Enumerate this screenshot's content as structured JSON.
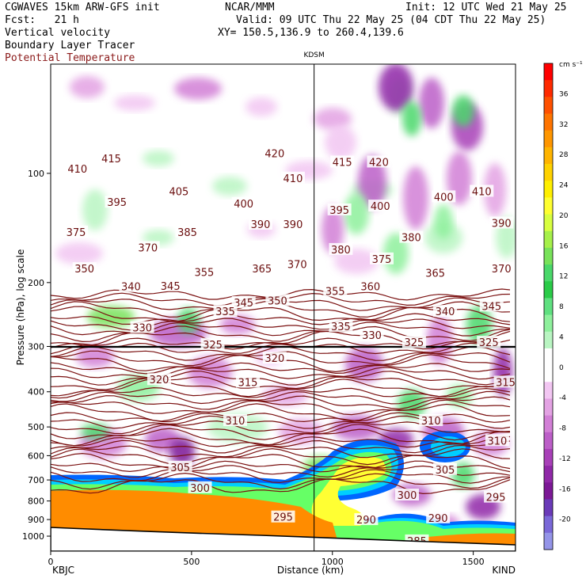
{
  "header": {
    "left_line1": "CGWAVES 15km ARW-GFS init",
    "left_line2": "Fcst:   21 h",
    "center": "NCAR/MMM",
    "init": "Init: 12 UTC Wed 21 May 25",
    "valid": "Valid: 09 UTC Thu 22 May 25 (04 CDT Thu 22 May 25)",
    "xy": "XY= 150.5,136.9 to 260.4,139.6",
    "fields": [
      "Vertical velocity",
      "Boundary Layer Tracer",
      "Potential Temperature"
    ]
  },
  "chart_data": {
    "type": "heatmap",
    "title": "",
    "xlabel": "Distance (km)",
    "ylabel": "Pressure (hPa), log scale",
    "xlim": [
      0,
      1650
    ],
    "ylim": [
      1100,
      50
    ],
    "yscale": "log",
    "x_ticks": [
      0,
      500,
      1000,
      1500
    ],
    "y_ticks": [
      100,
      200,
      300,
      400,
      500,
      600,
      700,
      800,
      900,
      1000
    ],
    "endpoint_labels": {
      "left": "KBJC",
      "right": "KIND"
    },
    "marker": {
      "label": "KDSM",
      "x": 935
    },
    "colorbar": {
      "units": "cm s⁻¹",
      "tick_labels": [
        36,
        32,
        28,
        24,
        20,
        16,
        12,
        8,
        4,
        0,
        -4,
        -8,
        -12,
        -16,
        -20
      ],
      "colors": [
        "#ff0000",
        "#ff2a00",
        "#ff5000",
        "#ff7400",
        "#ff9600",
        "#ffb400",
        "#ffd200",
        "#ffef00",
        "#ffff30",
        "#d8ff40",
        "#a6f04a",
        "#78e25a",
        "#4ad86a",
        "#2acb48",
        "#5fe080",
        "#8ef09c",
        "#b9f5c2",
        "#ffffff",
        "#ffffff",
        "#f2c6f2",
        "#e3a2e3",
        "#d27fd6",
        "#bc5ec8",
        "#a840b8",
        "#9028a8",
        "#7c1896",
        "#6a3ab8",
        "#7a68d8",
        "#9494e8"
      ]
    },
    "tracer_colors": [
      "#ff8c00",
      "#ffff33",
      "#66ff66",
      "#00cfff",
      "#0066ff"
    ],
    "theta_labels": [
      {
        "value": 420,
        "x": 795,
        "p": 88
      },
      {
        "value": 415,
        "x": 215,
        "p": 91
      },
      {
        "value": 415,
        "x": 1035,
        "p": 93
      },
      {
        "value": 420,
        "x": 1165,
        "p": 93
      },
      {
        "value": 410,
        "x": 95,
        "p": 97
      },
      {
        "value": 410,
        "x": 860,
        "p": 103
      },
      {
        "value": 405,
        "x": 455,
        "p": 112
      },
      {
        "value": 400,
        "x": 1395,
        "p": 116
      },
      {
        "value": 410,
        "x": 1530,
        "p": 112
      },
      {
        "value": 395,
        "x": 235,
        "p": 120
      },
      {
        "value": 400,
        "x": 685,
        "p": 121
      },
      {
        "value": 395,
        "x": 1025,
        "p": 126
      },
      {
        "value": 400,
        "x": 1170,
        "p": 123
      },
      {
        "value": 390,
        "x": 745,
        "p": 138
      },
      {
        "value": 390,
        "x": 860,
        "p": 138
      },
      {
        "value": 390,
        "x": 1600,
        "p": 137
      },
      {
        "value": 375,
        "x": 90,
        "p": 145
      },
      {
        "value": 385,
        "x": 485,
        "p": 145
      },
      {
        "value": 380,
        "x": 1030,
        "p": 162
      },
      {
        "value": 380,
        "x": 1280,
        "p": 150
      },
      {
        "value": 370,
        "x": 345,
        "p": 160
      },
      {
        "value": 370,
        "x": 875,
        "p": 178
      },
      {
        "value": 375,
        "x": 1175,
        "p": 172
      },
      {
        "value": 370,
        "x": 1600,
        "p": 183
      },
      {
        "value": 350,
        "x": 120,
        "p": 183
      },
      {
        "value": 355,
        "x": 545,
        "p": 187
      },
      {
        "value": 365,
        "x": 750,
        "p": 183
      },
      {
        "value": 365,
        "x": 1365,
        "p": 188
      },
      {
        "value": 340,
        "x": 285,
        "p": 205
      },
      {
        "value": 345,
        "x": 425,
        "p": 204
      },
      {
        "value": 345,
        "x": 685,
        "p": 227
      },
      {
        "value": 355,
        "x": 1010,
        "p": 211
      },
      {
        "value": 360,
        "x": 1135,
        "p": 205
      },
      {
        "value": 350,
        "x": 805,
        "p": 224
      },
      {
        "value": 335,
        "x": 620,
        "p": 240
      },
      {
        "value": 340,
        "x": 1400,
        "p": 240
      },
      {
        "value": 345,
        "x": 1565,
        "p": 232
      },
      {
        "value": 330,
        "x": 325,
        "p": 266
      },
      {
        "value": 335,
        "x": 1030,
        "p": 264
      },
      {
        "value": 330,
        "x": 1140,
        "p": 279
      },
      {
        "value": 325,
        "x": 1290,
        "p": 292
      },
      {
        "value": 325,
        "x": 1555,
        "p": 292
      },
      {
        "value": 325,
        "x": 575,
        "p": 296
      },
      {
        "value": 320,
        "x": 795,
        "p": 323
      },
      {
        "value": 320,
        "x": 385,
        "p": 370
      },
      {
        "value": 315,
        "x": 700,
        "p": 376
      },
      {
        "value": 315,
        "x": 1615,
        "p": 376
      },
      {
        "value": 310,
        "x": 655,
        "p": 480
      },
      {
        "value": 310,
        "x": 1350,
        "p": 480
      },
      {
        "value": 310,
        "x": 1585,
        "p": 545
      },
      {
        "value": 305,
        "x": 460,
        "p": 645
      },
      {
        "value": 305,
        "x": 1400,
        "p": 655
      },
      {
        "value": 300,
        "x": 530,
        "p": 735
      },
      {
        "value": 300,
        "x": 1265,
        "p": 770
      },
      {
        "value": 295,
        "x": 825,
        "p": 885
      },
      {
        "value": 295,
        "x": 1580,
        "p": 780
      },
      {
        "value": 290,
        "x": 1120,
        "p": 900
      },
      {
        "value": 290,
        "x": 1375,
        "p": 890
      },
      {
        "value": 285,
        "x": 1300,
        "p": 1030
      }
    ]
  }
}
